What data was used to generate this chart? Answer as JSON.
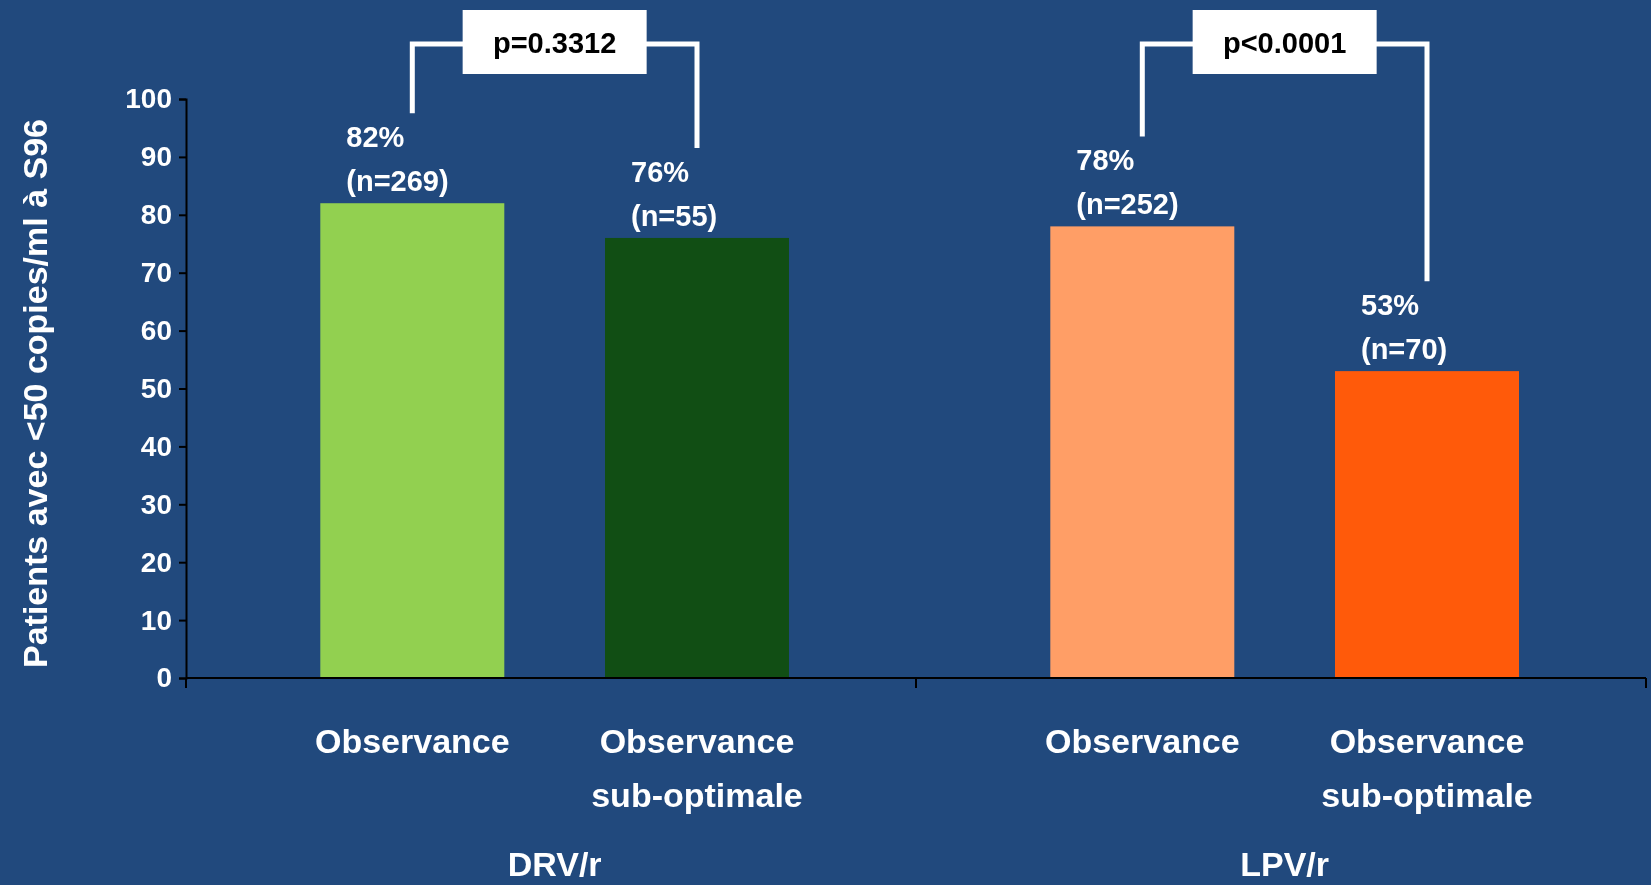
{
  "chart_data": {
    "type": "bar",
    "ylabel": "Patients avec <50 copies/ml à S96",
    "categories": [
      "Observance",
      "Observance sub-optimale",
      "Observance",
      "Observance sub-optimale"
    ],
    "values": [
      82,
      76,
      78,
      53
    ],
    "colors": [
      "#92d050",
      "#114e14",
      "#ff9e66",
      "#ff5a0a"
    ],
    "value_labels": [
      "82%\n(n=269)",
      "76%\n(n=55)",
      "78%\n(n=252)",
      "53%\n(n=70)"
    ],
    "ylim": [
      0,
      100
    ],
    "yticks": [
      0,
      10,
      20,
      30,
      40,
      50,
      60,
      70,
      80,
      90,
      100
    ],
    "grid": false,
    "annotations": [
      "p=0.3312",
      "p<0.0001",
      "DRV/r",
      "LPV/r"
    ]
  }
}
